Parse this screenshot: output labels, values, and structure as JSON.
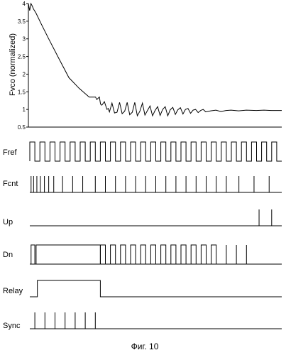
{
  "chart_data": [
    {
      "type": "line",
      "title": "",
      "xlabel": "",
      "ylabel": "Fvco (normalized)",
      "ylim": [
        0.5,
        4
      ],
      "yticks": [
        "0.5",
        "1",
        "1.5",
        "2",
        "2.5",
        "3",
        "3.5",
        "4"
      ],
      "grid": false,
      "series": [
        {
          "x": [
            0,
            0.5,
            1,
            1.6,
            2,
            3,
            5,
            8,
            12,
            16,
            20,
            24,
            26.5,
            27,
            28,
            28.5,
            29,
            30,
            31,
            31.5,
            32,
            33,
            34,
            35,
            36,
            37,
            38,
            39,
            40,
            41,
            42,
            43,
            44,
            45,
            46,
            47,
            48,
            49,
            50,
            51,
            52,
            53,
            54,
            55,
            56,
            57,
            58,
            59,
            60,
            61,
            62,
            63,
            64,
            65,
            66,
            67,
            68,
            69,
            70,
            72,
            74,
            76,
            78,
            80,
            83,
            86,
            90,
            93,
            96,
            100
          ],
          "y": [
            4.0,
            3.8,
            4.0,
            3.92,
            3.85,
            3.73,
            3.43,
            3.0,
            2.45,
            1.9,
            1.6,
            1.35,
            1.35,
            1.28,
            1.35,
            1.15,
            1.12,
            1.22,
            1.0,
            1.03,
            0.93,
            1.18,
            0.9,
            0.92,
            1.2,
            0.88,
            0.95,
            1.2,
            0.85,
            0.92,
            1.2,
            0.82,
            0.95,
            1.18,
            0.84,
            0.97,
            1.1,
            0.82,
            0.97,
            1.08,
            0.83,
            1.0,
            1.08,
            0.82,
            0.99,
            1.06,
            0.86,
            0.99,
            1.05,
            0.87,
            1.0,
            1.03,
            0.89,
            0.98,
            1.0,
            0.91,
            0.97,
            1.0,
            0.93,
            0.96,
            0.98,
            0.94,
            0.97,
            0.98,
            0.96,
            0.98,
            0.97,
            0.98,
            0.97,
            0.97
          ]
        }
      ]
    },
    {
      "type": "timing",
      "x_range": [
        0,
        100
      ],
      "channels": [
        {
          "name": "Fref",
          "kind": "square",
          "start": 0,
          "end": 100,
          "period": 4.0
        },
        {
          "name": "Fcnt",
          "kind": "pulses",
          "pulses": [
            0.5,
            1.5,
            2.8,
            4.2,
            5.8,
            7.5,
            9.5,
            13,
            17,
            21,
            26,
            30,
            34,
            38,
            42,
            46,
            50,
            54,
            58,
            62,
            66,
            70,
            74,
            78,
            83,
            89,
            95
          ]
        },
        {
          "name": "Up",
          "kind": "pulses",
          "pulses": [
            91,
            96
          ]
        },
        {
          "name": "Dn",
          "kind": "mixed",
          "segments": [
            {
              "kind": "pulse",
              "t": 0.5,
              "w": 1.5
            },
            {
              "kind": "level",
              "from": 2.5,
              "to": 28,
              "level": 1
            },
            {
              "kind": "square",
              "from": 28,
              "to": 76,
              "period": 4.0
            },
            {
              "kind": "thin",
              "at": [
                78,
                82,
                86
              ]
            }
          ]
        },
        {
          "name": "Relay",
          "kind": "levels",
          "high": [
            [
              3,
              28
            ]
          ]
        },
        {
          "name": "Sync",
          "kind": "pulses",
          "pulses": [
            2,
            6,
            10,
            14,
            18,
            22,
            26
          ]
        }
      ]
    }
  ],
  "caption": "Фиг. 10"
}
